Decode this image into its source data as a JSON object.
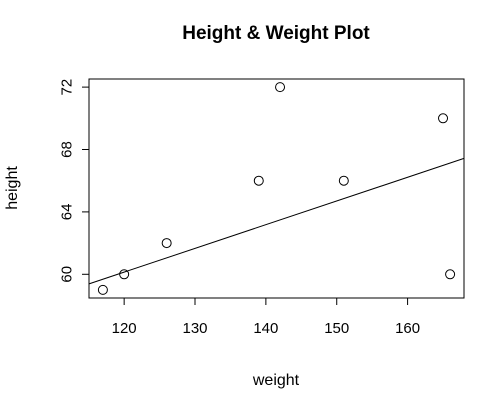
{
  "chart_data": {
    "type": "scatter",
    "title": "Height & Weight Plot",
    "xlabel": "weight",
    "ylabel": "height",
    "xlim": [
      115.04,
      167.96
    ],
    "ylim": [
      58.48,
      72.52
    ],
    "xticks": [
      120,
      130,
      140,
      150,
      160
    ],
    "yticks": [
      60,
      64,
      68,
      72
    ],
    "grid": false,
    "legend": "none",
    "points": [
      {
        "x": 117,
        "y": 59
      },
      {
        "x": 120,
        "y": 60
      },
      {
        "x": 126,
        "y": 62
      },
      {
        "x": 139,
        "y": 66
      },
      {
        "x": 142,
        "y": 72
      },
      {
        "x": 151,
        "y": 66
      },
      {
        "x": 165,
        "y": 70
      },
      {
        "x": 166,
        "y": 60
      }
    ],
    "regression_line": {
      "intercept": 41.9,
      "slope": 0.152
    }
  }
}
